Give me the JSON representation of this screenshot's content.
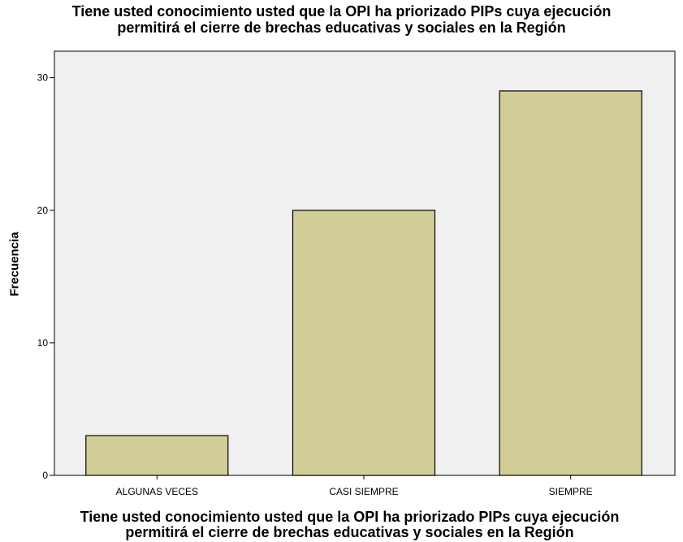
{
  "chart_data": {
    "type": "bar",
    "title": "Tiene usted conocimiento usted que la OPI ha priorizado PIPs cuya ejecución\npermitirá el cierre de brechas educativas y sociales en la Región",
    "xlabel": "Tiene usted conocimiento usted que la OPI ha priorizado PIPs cuya ejecución\npermitirá el cierre de brechas educativas y sociales en la Región",
    "ylabel": "Frecuencia",
    "categories": [
      "ALGUNAS VECES",
      "CASI SIEMPRE",
      "SIEMPRE"
    ],
    "values": [
      3,
      20,
      29
    ],
    "ylim": [
      0,
      32
    ],
    "yticks": [
      0,
      10,
      20,
      30
    ],
    "grid": false,
    "colors": {
      "bar_fill": "#D3CE97",
      "bar_stroke": "#000000",
      "plot_background": "#F0F0F0",
      "axis": "#000000"
    }
  }
}
